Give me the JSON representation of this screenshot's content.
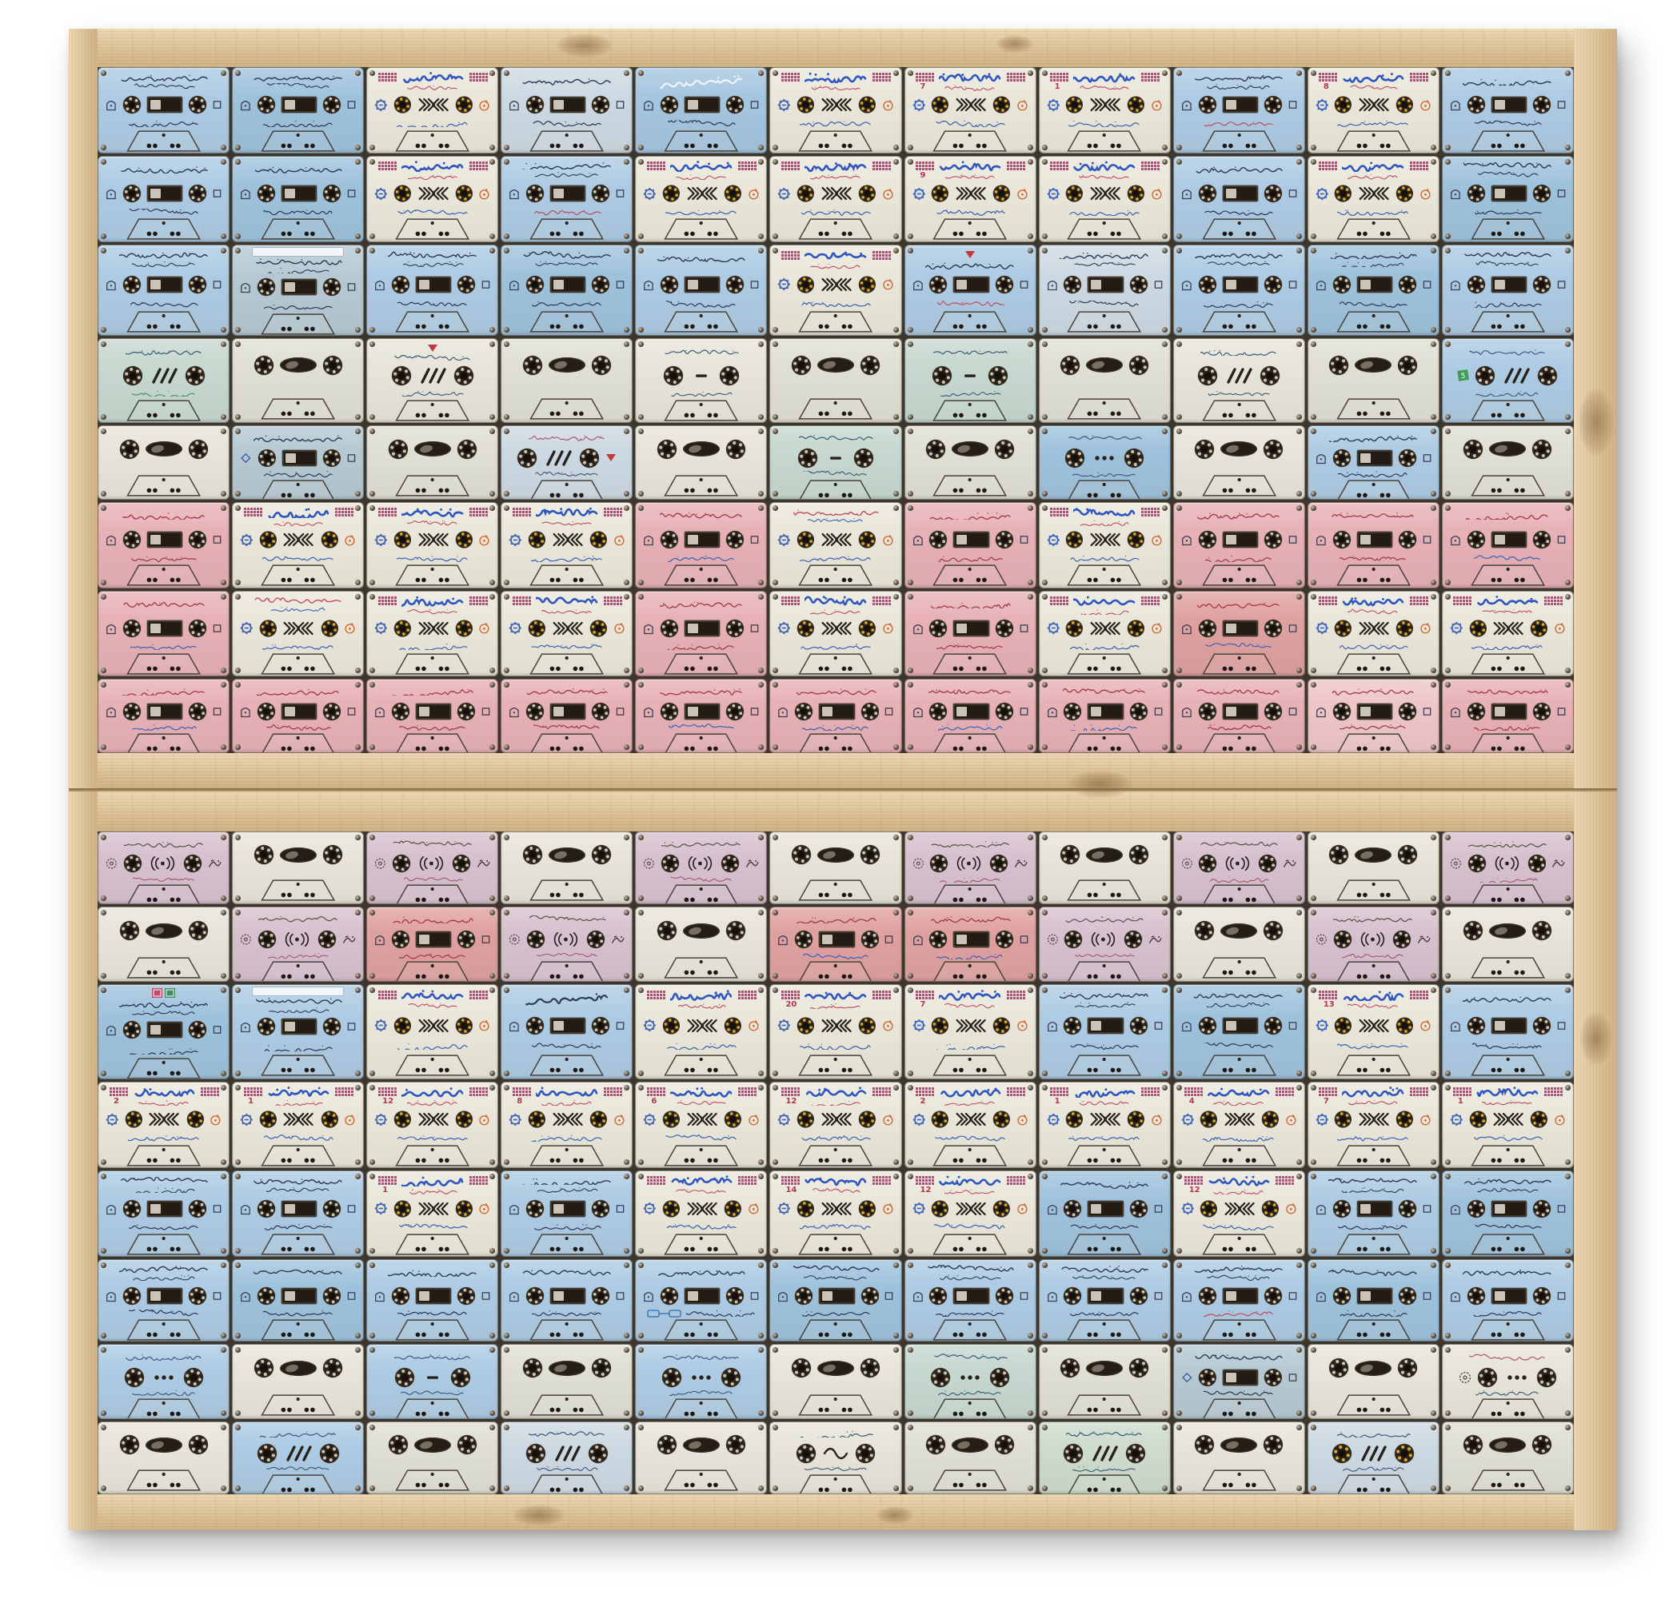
{
  "artwork": {
    "kind": "photograph of a mixed-media artwork",
    "description": "Two pine-wood framed panels stacked vertically, each holding a tight 8-row by 11-column grid of vintage Arabic Islamic sermon audio cassette tapes in pastel blue, cream, pink, salmon and lavender shells",
    "panel_count": 2,
    "rows_per_panel": 8,
    "columns": 11,
    "total_cassettes": 176
  },
  "palette": {
    "page_bg": "#ffffff",
    "wood_light": "#ecd8b2",
    "wood": "#dcc298",
    "wood_dark": "#c9ab7c",
    "seam": "#8a7354",
    "grid_bg": "#3d362c",
    "blue": "#adcbe3",
    "blue2": "#9fc2dc",
    "bluepale": "#cdd9e2",
    "bluegray": "#b6c9d3",
    "bluedeep": "#a5c6e0",
    "teal": "#c6d8cf",
    "green": "#cedbcd",
    "cream": "#eae7da",
    "pale": "#e0dfd3",
    "pale2": "#e7e5d9",
    "lav": "#d7c1ce",
    "pink": "#e7b1b6",
    "salmon": "#dfa1a0",
    "pinklight": "#eec6c8",
    "title_blue": "#2e55c0",
    "block_pink": "#bf4a6e",
    "text_red": "#c44b60",
    "text_blue": "#3c63b8",
    "ink": "#2c3a55",
    "ink_dark": "#26221c",
    "hub_ring": "#3b332b",
    "hub_teeth": "#cdc2ad",
    "hub_yellow": "#d9a826",
    "window": "#221c15",
    "accent_orange": "#d2622a"
  },
  "texts": {
    "recurring_phrases": {
      "manar_title": "منار السبيل",
      "manar_subtitle": "في شرح الدليل (كتاب الصلاة)",
      "manar_credit": "شرح د. ناصر بن سليمان العمر",
      "blue_common_header": "لا تستبدلوا ولاية الله بالولايات الجاهلية",
      "tahawiyya": "شرح العقيدة الطحاوية",
      "hawali": "الحوالي",
      "sheikh_omar": "الشيخ ناصر العمر",
      "tahkim": "رسالة تحكيم القوانين",
      "kalima": "الكلمة الطيبة صدقة",
      "qiraat": "مختارات من أجمل القراءات",
      "nida": "تسجيلات النداء الإسلامية",
      "salama": "سلامة الصدور من الأحقاد"
    },
    "numbers_seen_on_labels": [
      "١",
      "٢",
      "٤",
      "٦",
      "٧",
      "٨",
      "٩",
      "١٢",
      "١٣",
      "١٤",
      "٢٠"
    ]
  },
  "cassette_types": {
    "M": "cream 'Manar al-Sabil' shell: pink pixel blocks flanking blue title, red subtitle, octagon icon, two reels with facing triple chevrons, orange circle icon, blue credit line",
    "B": "blue lecture shell: handwritten Arabic header, arch icon, reel / dark tape window / reel, small side icon, footer line",
    "Bt": "blue shell with large tilted handwritten title",
    "Br": "blue shell with red/pink accent text",
    "W": "very pale blue shell with window and text",
    "P": "pink sermon shell with window and red/blue text",
    "Ps": "salmon shell with window",
    "L": "lavender shell: radiating ((•)) mark between reels, calligraphic side icon",
    "C": "blank shell: reels and dark oval window only, no label text",
    "F": "shell with three diagonal slashes between reels",
    "G": "shell with three dots between reels",
    "H": "shell with single dash between reels",
    "I": "shell with wave mark between reels"
  },
  "grid": {
    "panel1": [
      [
        "B|blue",
        "B|blue2",
        "M|cream|y",
        "W|bluepale",
        "Bt|bluedeep|wt",
        "M|cream",
        "M|cream||٧",
        "M|cream||١",
        "Br|blue",
        "M|cream||٨",
        "B|blue"
      ],
      [
        "B|blue",
        "B|blue2",
        "M|cream",
        "Br|blue",
        "M|cream",
        "M|cream",
        "M|cream||٩",
        "M|cream",
        "B|blue",
        "M|cream",
        "B|blue2"
      ],
      [
        "B|blue",
        "B|bluegray|strip",
        "B|blue",
        "B|blue2",
        "B|blue",
        "M|cream",
        "Br|blue|redtri",
        "W|bluepale",
        "B|blue",
        "B|blue2",
        "B|blue"
      ],
      [
        "F|teal|bar",
        "C|pale",
        "F|pale2|redtri",
        "C|pale",
        "H|pale2",
        "C|pale",
        "H|teal",
        "C|pale",
        "F|pale2",
        "C|pale",
        "F|blue|green5"
      ],
      [
        "C|pale2",
        "B|bluegray|dwin",
        "C|pale",
        "F|bluepale|pink",
        "C|pale2",
        "H|teal",
        "C|pale",
        "G|blue2",
        "C|pale2",
        "B|blue||١٩٩",
        "C|pale"
      ],
      [
        "P|pink",
        "M|cream|y",
        "M|cream",
        "M|cream",
        "P|pink",
        "M|cream|alt",
        "P|pink",
        "M|cream",
        "P|pink",
        "P|pink",
        "P|pink"
      ],
      [
        "P|pink",
        "M|cream|alt",
        "M|cream|y",
        "M|cream",
        "P|pink",
        "M|cream",
        "P|pink",
        "M|cream",
        "Ps|salmon",
        "M|cream",
        "M|cream"
      ],
      [
        "P|pink",
        "P|pink",
        "P|pink",
        "P|pink",
        "P|pink",
        "P|pink",
        "P|pink",
        "P|pink",
        "P|pink",
        "P|pinklight",
        "P|pink"
      ]
    ],
    "panel2": [
      [
        "L|lav",
        "C|pale2",
        "L|lav",
        "C|pale2",
        "L|lav",
        "C|pale2",
        "L|lav",
        "C|pale2",
        "L|lav",
        "C|pale2",
        "L|lav"
      ],
      [
        "C|pale2",
        "L|lav",
        "Ps|salmon",
        "L|lav",
        "C|pale2",
        "Ps|salmon",
        "Ps|salmon",
        "L|lav",
        "C|pale2",
        "L|lav",
        "C|pale2"
      ],
      [
        "B|blue2|stamp",
        "B|blue|strip",
        "M|cream",
        "Bt|blue",
        "M|cream",
        "M|cream||٢٠",
        "M|cream||٧",
        "B|blue",
        "B|blue2",
        "M|cream||١٣",
        "B|blue"
      ],
      [
        "M|cream||٢",
        "M|cream||١",
        "M|cream||١٢",
        "M|cream||٨",
        "M|cream||٦",
        "M|cream||١٢",
        "M|cream||٢",
        "M|cream||١",
        "M|cream||٤",
        "M|cream||٧",
        "M|cream||١"
      ],
      [
        "B|blue",
        "B|blue||٢٩",
        "M|cream||١",
        "B|blue",
        "M|cream",
        "M|cream||١٤",
        "M|cream||١٢",
        "B|blue2",
        "M|cream||١٢",
        "B|blue",
        "B|blue2"
      ],
      [
        "B|blue",
        "B|blue2",
        "B|blue",
        "B|blue",
        "B|blue|flow",
        "B|blue2",
        "B|blue",
        "B|blue",
        "Br|blue",
        "B|blue2",
        "B|blue"
      ],
      [
        "G|blue",
        "C|pale2",
        "H|blue",
        "C|pale",
        "G|blue",
        "C|pale2",
        "G|teal",
        "C|pale",
        "B|bluegray|dwin",
        "C|pale2",
        "G|pale2|color"
      ],
      [
        "C|pale2",
        "F|blue",
        "C|pale",
        "F|bluepale",
        "C|pale2",
        "I|pale2",
        "C|pale",
        "F|green",
        "C|pale2",
        "F|bluepale|y",
        "C|pale"
      ]
    ]
  }
}
